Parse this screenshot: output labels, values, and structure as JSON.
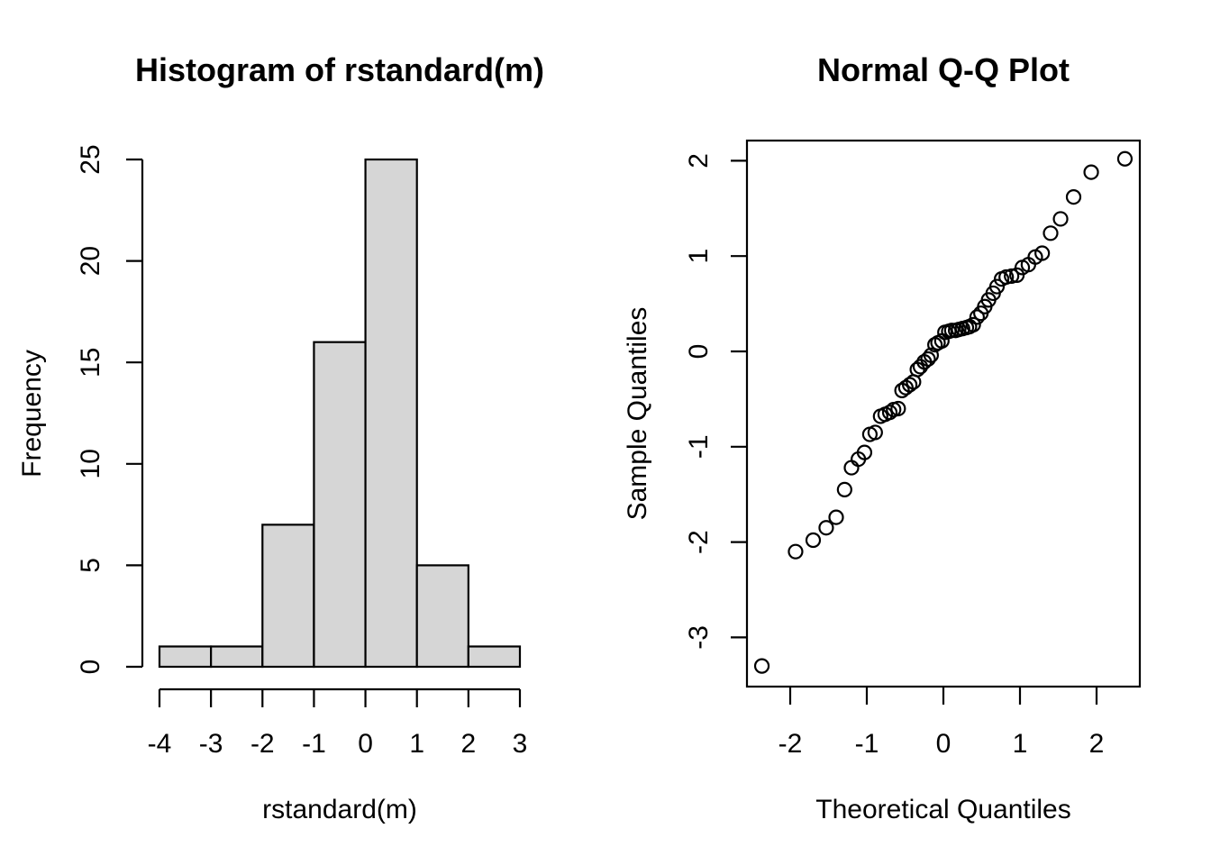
{
  "figure": {
    "background": "#ffffff",
    "foreground": "#000000"
  },
  "chart_data": [
    {
      "type": "bar",
      "subtype": "histogram",
      "title": "Histogram of rstandard(m)",
      "xlabel": "rstandard(m)",
      "ylabel": "Frequency",
      "bin_edges": [
        -4,
        -3,
        -2,
        -1,
        0,
        1,
        2,
        3
      ],
      "counts": [
        1,
        1,
        7,
        16,
        25,
        5,
        1
      ],
      "x_ticks": [
        -4,
        -3,
        -2,
        -1,
        0,
        1,
        2,
        3
      ],
      "y_ticks": [
        0,
        5,
        10,
        15,
        20,
        25
      ],
      "xlim": [
        -4.28,
        3.28
      ],
      "ylim": [
        0,
        25
      ],
      "grid": false,
      "bar_fill": "#d6d6d6",
      "bar_stroke": "#000000"
    },
    {
      "type": "scatter",
      "title": "Normal Q-Q Plot",
      "xlabel": "Theoretical Quantiles",
      "ylabel": "Sample Quantiles",
      "x_ticks": [
        -2,
        -1,
        0,
        1,
        2
      ],
      "y_ticks": [
        2,
        1,
        0,
        -1,
        -2,
        -3
      ],
      "xlim": [
        -2.56,
        2.56
      ],
      "ylim": [
        -3.52,
        2.22
      ],
      "grid": false,
      "marker": "open-circle",
      "marker_color": "#000000",
      "n_points": 56,
      "points": [
        [
          -2.37,
          -3.3
        ],
        [
          -1.93,
          -2.1
        ],
        [
          -1.7,
          -1.98
        ],
        [
          -1.53,
          -1.85
        ],
        [
          -1.4,
          -1.74
        ],
        [
          -1.29,
          -1.45
        ],
        [
          -1.2,
          -1.22
        ],
        [
          -1.11,
          -1.13
        ],
        [
          -1.03,
          -1.06
        ],
        [
          -0.96,
          -0.87
        ],
        [
          -0.89,
          -0.85
        ],
        [
          -0.82,
          -0.68
        ],
        [
          -0.76,
          -0.66
        ],
        [
          -0.7,
          -0.64
        ],
        [
          -0.65,
          -0.61
        ],
        [
          -0.59,
          -0.6
        ],
        [
          -0.54,
          -0.41
        ],
        [
          -0.49,
          -0.38
        ],
        [
          -0.44,
          -0.35
        ],
        [
          -0.39,
          -0.32
        ],
        [
          -0.34,
          -0.19
        ],
        [
          -0.3,
          -0.16
        ],
        [
          -0.25,
          -0.11
        ],
        [
          -0.2,
          -0.08
        ],
        [
          -0.16,
          -0.04
        ],
        [
          -0.11,
          0.07
        ],
        [
          -0.07,
          0.09
        ],
        [
          -0.02,
          0.11
        ],
        [
          0.02,
          0.2
        ],
        [
          0.07,
          0.21
        ],
        [
          0.11,
          0.22
        ],
        [
          0.16,
          0.22
        ],
        [
          0.2,
          0.23
        ],
        [
          0.25,
          0.24
        ],
        [
          0.3,
          0.25
        ],
        [
          0.34,
          0.26
        ],
        [
          0.39,
          0.28
        ],
        [
          0.44,
          0.36
        ],
        [
          0.49,
          0.4
        ],
        [
          0.54,
          0.47
        ],
        [
          0.59,
          0.54
        ],
        [
          0.65,
          0.61
        ],
        [
          0.7,
          0.68
        ],
        [
          0.76,
          0.76
        ],
        [
          0.82,
          0.78
        ],
        [
          0.89,
          0.79
        ],
        [
          0.96,
          0.8
        ],
        [
          1.03,
          0.88
        ],
        [
          1.11,
          0.91
        ],
        [
          1.2,
          0.99
        ],
        [
          1.29,
          1.03
        ],
        [
          1.4,
          1.24
        ],
        [
          1.53,
          1.39
        ],
        [
          1.7,
          1.62
        ],
        [
          1.93,
          1.88
        ],
        [
          2.37,
          2.02
        ]
      ]
    }
  ]
}
